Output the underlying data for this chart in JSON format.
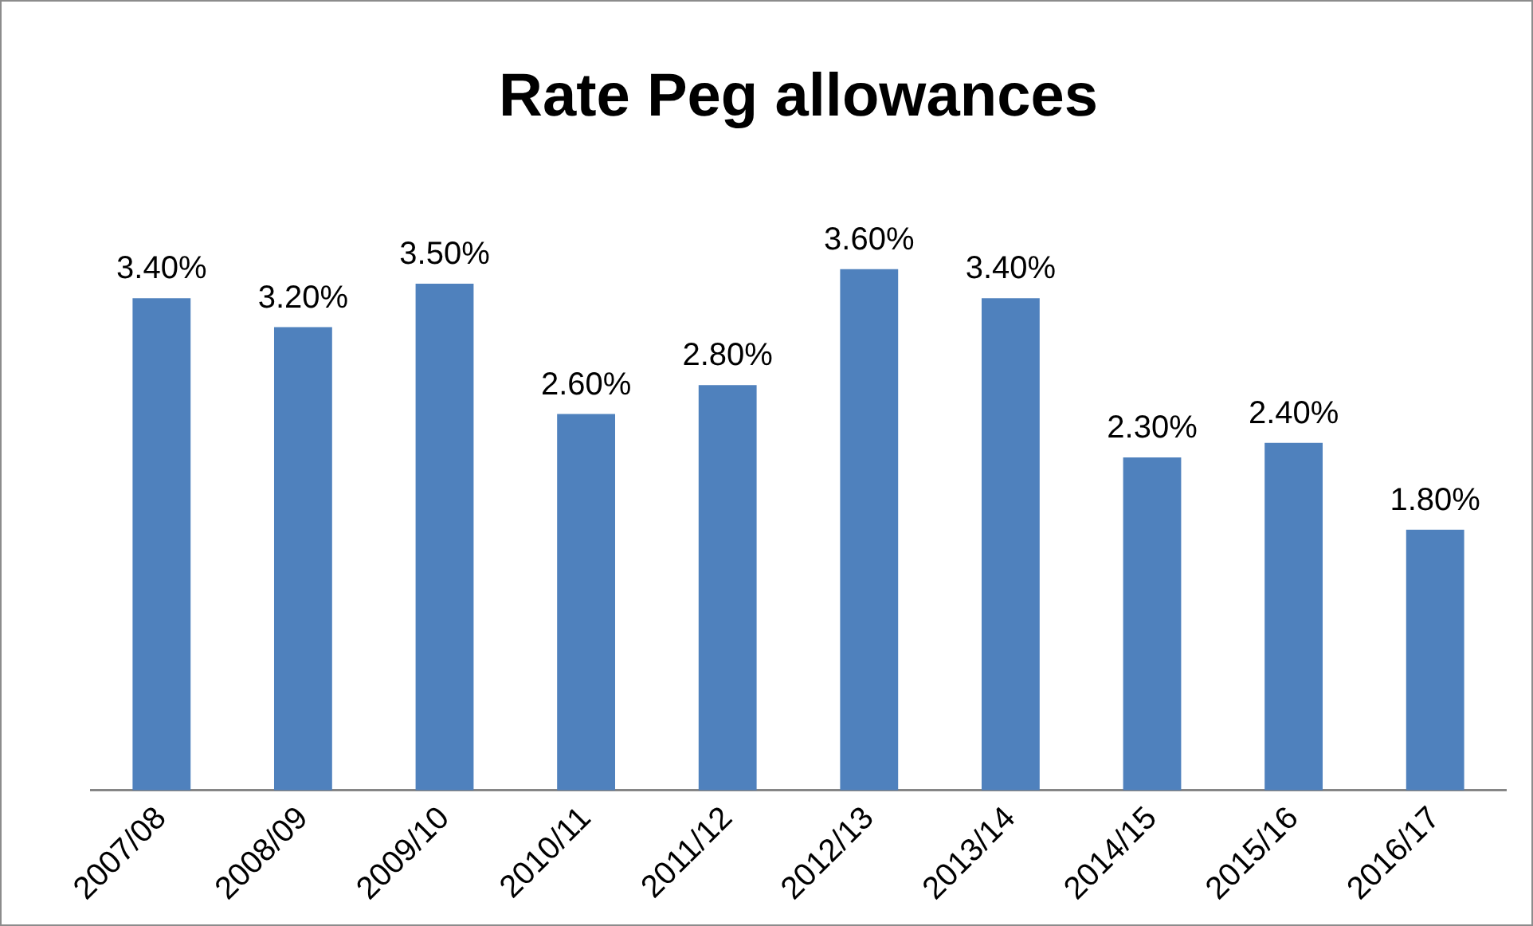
{
  "chart_data": {
    "type": "bar",
    "title": "Rate Peg allowances",
    "categories": [
      "2007/08",
      "2008/09",
      "2009/10",
      "2010/11",
      "2011/12",
      "2012/13",
      "2013/14",
      "2014/15",
      "2015/16",
      "2016/17"
    ],
    "values": [
      3.4,
      3.2,
      3.5,
      2.6,
      2.8,
      3.6,
      3.4,
      2.3,
      2.4,
      1.8
    ],
    "value_labels": [
      "3.40%",
      "3.20%",
      "3.50%",
      "2.60%",
      "2.80%",
      "3.60%",
      "3.40%",
      "2.30%",
      "2.40%",
      "1.80%"
    ],
    "color": "#4f81bd",
    "grid": false,
    "legend": false
  }
}
